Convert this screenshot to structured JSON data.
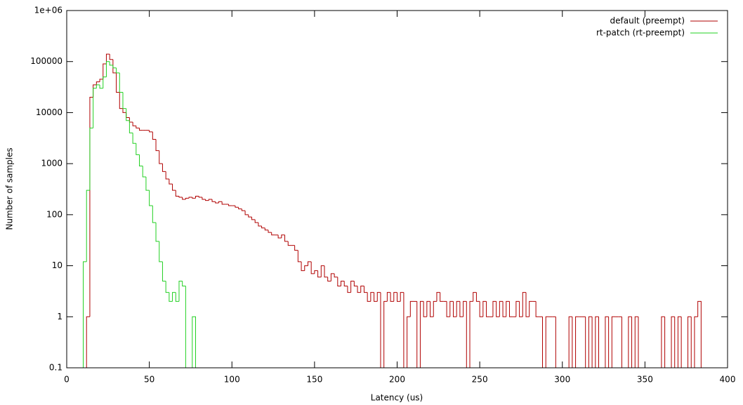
{
  "chart_data": {
    "type": "histogram",
    "xlabel": "Latency (us)",
    "ylabel": "Number of samples",
    "xlim": [
      0,
      400
    ],
    "xticks": [
      0,
      50,
      100,
      150,
      200,
      250,
      300,
      350,
      400
    ],
    "ylim": [
      0.1,
      1000000
    ],
    "yticks": [
      0.1,
      1,
      10,
      100,
      1000,
      10000,
      100000,
      {
        "value": 1000000,
        "label": "1e+06"
      }
    ],
    "log_y": true,
    "legend": "top-right",
    "series": [
      {
        "name": "default (preempt)",
        "color": "#b00000",
        "bins": [
          12,
          14,
          16,
          18,
          20,
          22,
          24,
          26,
          28,
          30,
          32,
          34,
          36,
          38,
          40,
          42,
          44,
          46,
          48,
          50,
          52,
          54,
          56,
          58,
          60,
          62,
          64,
          66,
          68,
          70,
          72,
          74,
          76,
          78,
          80,
          82,
          84,
          86,
          88,
          90,
          92,
          94,
          96,
          98,
          100,
          102,
          104,
          106,
          108,
          110,
          112,
          114,
          116,
          118,
          120,
          122,
          124,
          126,
          128,
          130,
          132,
          134,
          136,
          138,
          140,
          142,
          144,
          146,
          148,
          150,
          152,
          154,
          156,
          158,
          160,
          162,
          164,
          166,
          168,
          170,
          172,
          174,
          176,
          178,
          180,
          182,
          184,
          186,
          188,
          190,
          192,
          194,
          196,
          198,
          200,
          202,
          204,
          206,
          208,
          210,
          212,
          214,
          216,
          218,
          220,
          222,
          224,
          226,
          228,
          230,
          232,
          234,
          236,
          238,
          240,
          242,
          244,
          246,
          248,
          250,
          252,
          254,
          256,
          258,
          260,
          262,
          264,
          266,
          268,
          270,
          272,
          274,
          276,
          278,
          280,
          282,
          284,
          286,
          288,
          290,
          292,
          294,
          296,
          298,
          300,
          302,
          304,
          306,
          308,
          310,
          312,
          314,
          316,
          318,
          320,
          322,
          324,
          326,
          328,
          330,
          332,
          334,
          336,
          338,
          340,
          342,
          344,
          346,
          348,
          350,
          352,
          354,
          356,
          358,
          360,
          362,
          364,
          366,
          368,
          370,
          372,
          374,
          376,
          378,
          380,
          382,
          384
        ],
        "values": [
          1,
          20000,
          35000,
          40000,
          45000,
          90000,
          140000,
          110000,
          60000,
          25000,
          12000,
          10000,
          8000,
          6500,
          5500,
          5000,
          4500,
          4500,
          4500,
          4200,
          3000,
          1800,
          1000,
          700,
          500,
          400,
          300,
          230,
          220,
          200,
          210,
          220,
          210,
          230,
          220,
          200,
          190,
          200,
          180,
          170,
          180,
          160,
          160,
          150,
          150,
          140,
          130,
          120,
          100,
          90,
          80,
          70,
          60,
          55,
          50,
          45,
          40,
          40,
          35,
          40,
          30,
          25,
          25,
          20,
          12,
          8,
          10,
          12,
          7,
          8,
          6,
          10,
          6,
          5,
          7,
          6,
          4,
          5,
          4,
          3,
          5,
          4,
          3,
          4,
          3,
          2,
          3,
          2,
          3,
          0,
          2,
          3,
          2,
          3,
          2,
          3,
          0,
          1,
          2,
          2,
          0,
          2,
          1,
          2,
          1,
          2,
          3,
          2,
          2,
          1,
          2,
          1,
          2,
          1,
          2,
          0,
          2,
          3,
          2,
          1,
          2,
          1,
          1,
          2,
          1,
          2,
          1,
          2,
          1,
          1,
          2,
          1,
          3,
          1,
          2,
          2,
          1,
          1,
          0,
          1,
          1,
          1,
          0,
          0,
          0,
          0,
          1,
          0,
          1,
          1,
          1,
          0,
          1,
          0,
          1,
          0,
          0,
          1,
          0,
          1,
          1,
          1,
          0,
          0,
          1,
          0,
          1,
          0,
          0,
          0,
          0,
          0,
          0,
          0,
          1,
          0,
          0,
          1,
          0,
          1,
          0,
          0,
          1,
          0,
          1,
          2
        ]
      },
      {
        "name": "rt-patch (rt-preempt)",
        "color": "#22d022",
        "bins": [
          10,
          12,
          14,
          16,
          18,
          20,
          22,
          24,
          26,
          28,
          30,
          32,
          34,
          36,
          38,
          40,
          42,
          44,
          46,
          48,
          50,
          52,
          54,
          56,
          58,
          60,
          62,
          64,
          66,
          68,
          70,
          72,
          74,
          76,
          78
        ],
        "values": [
          12,
          300,
          5000,
          30000,
          35000,
          30000,
          50000,
          100000,
          85000,
          75000,
          60000,
          25000,
          12000,
          7000,
          4000,
          2500,
          1500,
          900,
          550,
          300,
          150,
          70,
          30,
          12,
          5,
          3,
          2,
          3,
          2,
          5,
          4,
          0,
          0,
          1
        ]
      }
    ]
  }
}
